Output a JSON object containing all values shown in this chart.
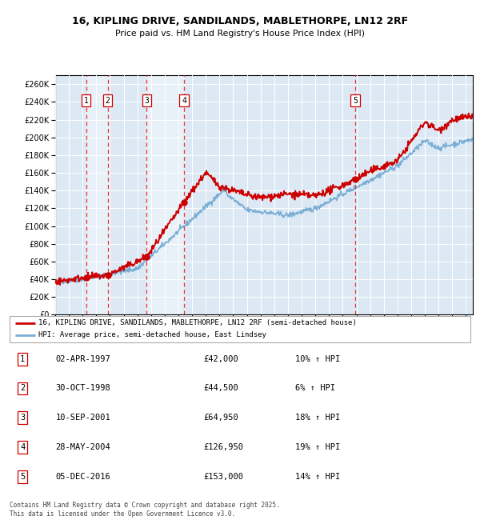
{
  "title": "16, KIPLING DRIVE, SANDILANDS, MABLETHORPE, LN12 2RF",
  "subtitle": "Price paid vs. HM Land Registry's House Price Index (HPI)",
  "legend_line1": "16, KIPLING DRIVE, SANDILANDS, MABLETHORPE, LN12 2RF (semi-detached house)",
  "legend_line2": "HPI: Average price, semi-detached house, East Lindsey",
  "footer": "Contains HM Land Registry data © Crown copyright and database right 2025.\nThis data is licensed under the Open Government Licence v3.0.",
  "sale_dates_num": [
    1997.25,
    1998.83,
    2001.69,
    2004.41,
    2016.92
  ],
  "sale_prices": [
    42000,
    44500,
    64950,
    126950,
    153000
  ],
  "sale_labels": [
    "1",
    "2",
    "3",
    "4",
    "5"
  ],
  "sale_info": [
    [
      "1",
      "02-APR-1997",
      "£42,000",
      "10% ↑ HPI"
    ],
    [
      "2",
      "30-OCT-1998",
      "£44,500",
      "6% ↑ HPI"
    ],
    [
      "3",
      "10-SEP-2001",
      "£64,950",
      "18% ↑ HPI"
    ],
    [
      "4",
      "28-MAY-2004",
      "£126,950",
      "19% ↑ HPI"
    ],
    [
      "5",
      "05-DEC-2016",
      "£153,000",
      "14% ↑ HPI"
    ]
  ],
  "xmin": 1995,
  "xmax": 2025.5,
  "ymin": 0,
  "ymax": 270000,
  "yticks": [
    0,
    20000,
    40000,
    60000,
    80000,
    100000,
    120000,
    140000,
    160000,
    180000,
    200000,
    220000,
    240000,
    260000
  ],
  "red_color": "#cc0000",
  "blue_color": "#7aadd4",
  "bg_color": "#dce9f5",
  "grid_color": "#ffffff",
  "dashed_color": "#ee3333",
  "box_fill_color": "#dce9f5"
}
